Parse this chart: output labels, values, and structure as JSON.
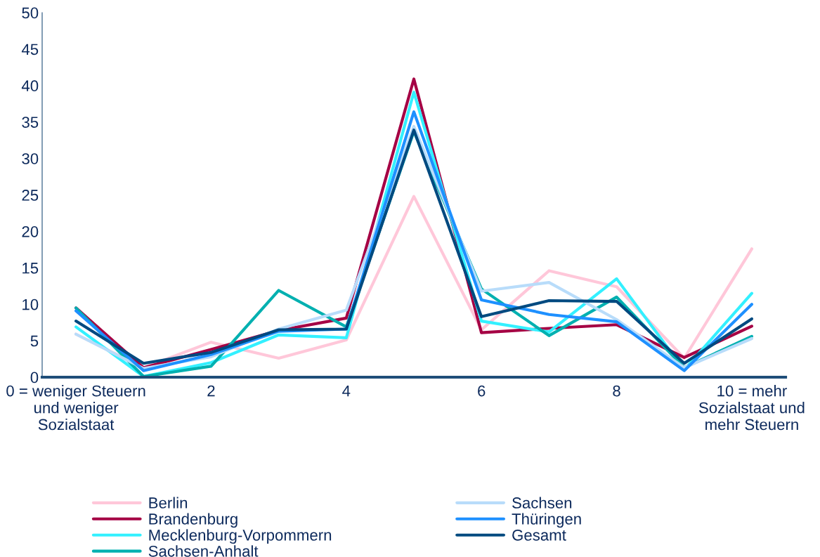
{
  "chart_data": {
    "type": "line",
    "categories": [
      "0 = weniger Steuern und weniger Sozialstaat",
      null,
      "2",
      null,
      "4",
      null,
      "6",
      null,
      "8",
      null,
      "10 = mehr Sozialstaat und mehr Steuern"
    ],
    "series": [
      {
        "name": "Berlin",
        "color": "#ffc7d9",
        "values": [
          5.9,
          1.3,
          4.8,
          2.6,
          5.1,
          24.8,
          6.5,
          14.6,
          12.4,
          2.6,
          17.6
        ]
      },
      {
        "name": "Brandenburg",
        "color": "#a50044",
        "values": [
          9.5,
          1.3,
          3.8,
          6.4,
          8.1,
          40.9,
          6.1,
          6.7,
          7.2,
          2.7,
          7.0
        ]
      },
      {
        "name": "Mecklenburg-Vorpommern",
        "color": "#33f0ff",
        "values": [
          6.9,
          0.1,
          2.0,
          5.8,
          5.4,
          39.1,
          7.7,
          6.2,
          13.5,
          1.0,
          11.5
        ]
      },
      {
        "name": "Sachsen-Anhalt",
        "color": "#00b0b0",
        "values": [
          9.5,
          0.1,
          1.5,
          11.9,
          6.9,
          33.7,
          12.1,
          5.7,
          11.0,
          1.3,
          5.6
        ]
      },
      {
        "name": "Sachsen",
        "color": "#b8dcfa",
        "values": [
          5.9,
          1.2,
          2.8,
          6.6,
          9.2,
          34.4,
          11.8,
          13.0,
          7.9,
          1.3,
          5.3
        ]
      },
      {
        "name": "Thüringen",
        "color": "#1e90ff",
        "values": [
          9.1,
          0.9,
          3.1,
          6.3,
          6.6,
          36.4,
          10.6,
          8.6,
          7.6,
          0.9,
          10.0
        ]
      },
      {
        "name": "Gesamt",
        "color": "#004a80",
        "values": [
          7.7,
          1.9,
          3.4,
          6.5,
          6.6,
          33.9,
          8.3,
          10.5,
          10.4,
          1.9,
          8.0
        ]
      }
    ],
    "ylim": [
      0,
      50
    ],
    "yticks": [
      0,
      5,
      10,
      15,
      20,
      25,
      30,
      35,
      40,
      45,
      50
    ],
    "grid": false,
    "legend": "bottom",
    "marker": "none",
    "line_style": "solid"
  }
}
